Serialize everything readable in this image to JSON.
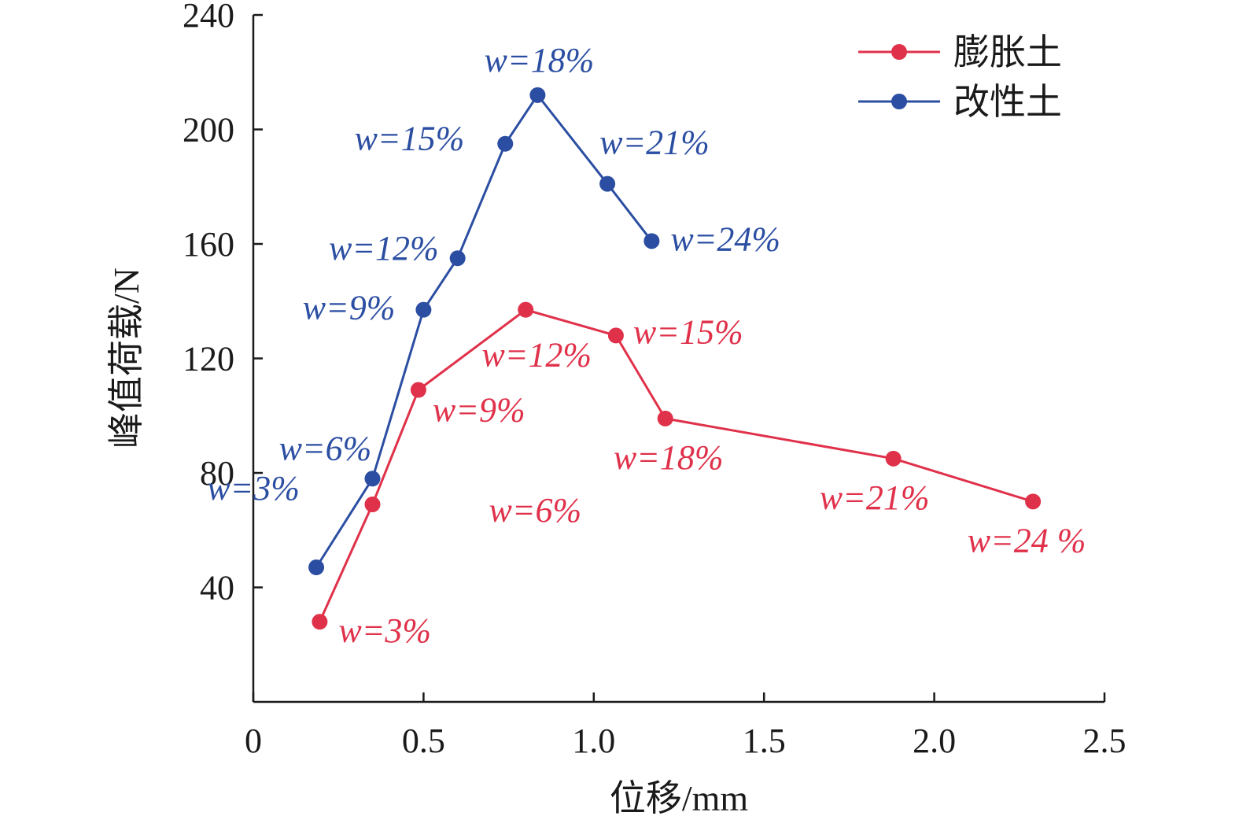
{
  "chart_data": {
    "type": "line",
    "xlabel": "位移/mm",
    "ylabel": "峰值荷载/N",
    "xlim": [
      0,
      2.5
    ],
    "ylim": [
      0,
      240
    ],
    "xticks": [
      0,
      0.5,
      1.0,
      1.5,
      2.0,
      2.5
    ],
    "xtick_labels": [
      "0",
      "0.5",
      "1.0",
      "1.5",
      "2.0",
      "2.5"
    ],
    "yticks": [
      40,
      80,
      120,
      160,
      200,
      240
    ],
    "ytick_labels": [
      "40",
      "80",
      "120",
      "160",
      "200",
      "240"
    ],
    "grid": false,
    "legend_position": "top-right",
    "series": [
      {
        "name": "膨胀土",
        "color": "#e0314a",
        "x": [
          0.195,
          0.35,
          0.485,
          0.8,
          1.065,
          1.21,
          1.88,
          2.29
        ],
        "y": [
          28,
          69,
          109,
          137,
          128,
          99,
          85,
          70
        ],
        "labels": [
          "w=3%",
          "w=6%",
          "w=9%",
          "w=12%",
          "w=15%",
          "w=18%",
          "w=21%",
          "w=24 %"
        ]
      },
      {
        "name": "改性土",
        "color": "#2b4ea2",
        "x": [
          0.185,
          0.35,
          0.5,
          0.6,
          0.74,
          0.835,
          1.04,
          1.17
        ],
        "y": [
          47,
          78,
          137,
          155,
          195,
          212,
          181,
          161
        ],
        "labels": [
          "w=3%",
          "w=6%",
          "w=9%",
          "w=12%",
          "w=15%",
          "w=18%",
          "w=21%",
          "w=24%"
        ]
      }
    ]
  }
}
